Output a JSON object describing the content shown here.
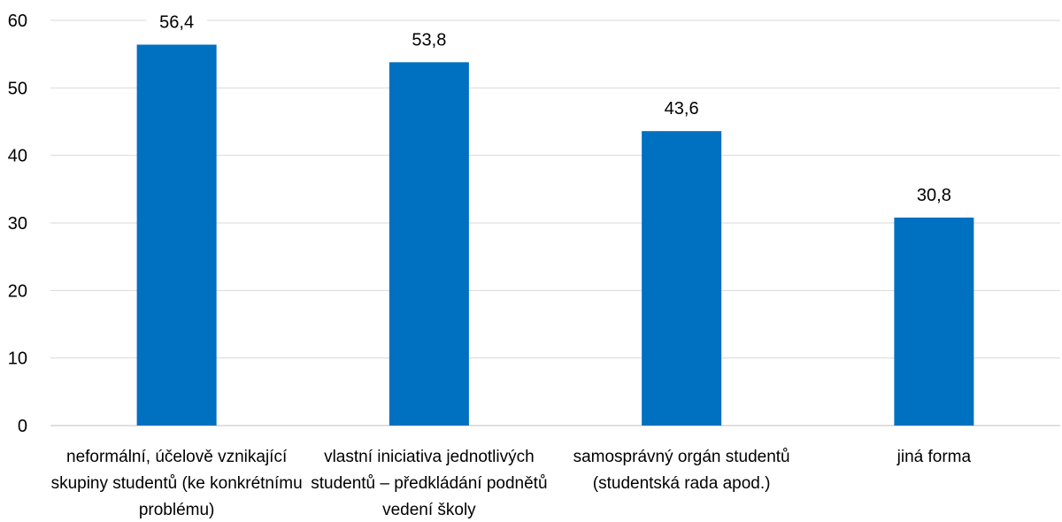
{
  "chart_data": {
    "type": "bar",
    "categories": [
      [
        "neformální,  účelově vznikající",
        "skupiny studentů  (ke konkrétnímu",
        "problému)"
      ],
      [
        "vlastní iniciativa  jednotlivých",
        "studentů – předkládání podnětů",
        "vedení školy"
      ],
      [
        "samosprávný orgán studentů",
        "(studentská rada apod.)"
      ],
      [
        "jiná forma"
      ]
    ],
    "values": [
      56.4,
      53.8,
      43.6,
      30.8
    ],
    "value_labels": [
      "56,4",
      "53,8",
      "43,6",
      "30,8"
    ],
    "yticks": [
      "0",
      "10",
      "20",
      "30",
      "40",
      "50",
      "60"
    ],
    "ylim": [
      0,
      60
    ],
    "grid": true,
    "bar_color": "#0070c0",
    "title": "",
    "xlabel": "",
    "ylabel": ""
  }
}
